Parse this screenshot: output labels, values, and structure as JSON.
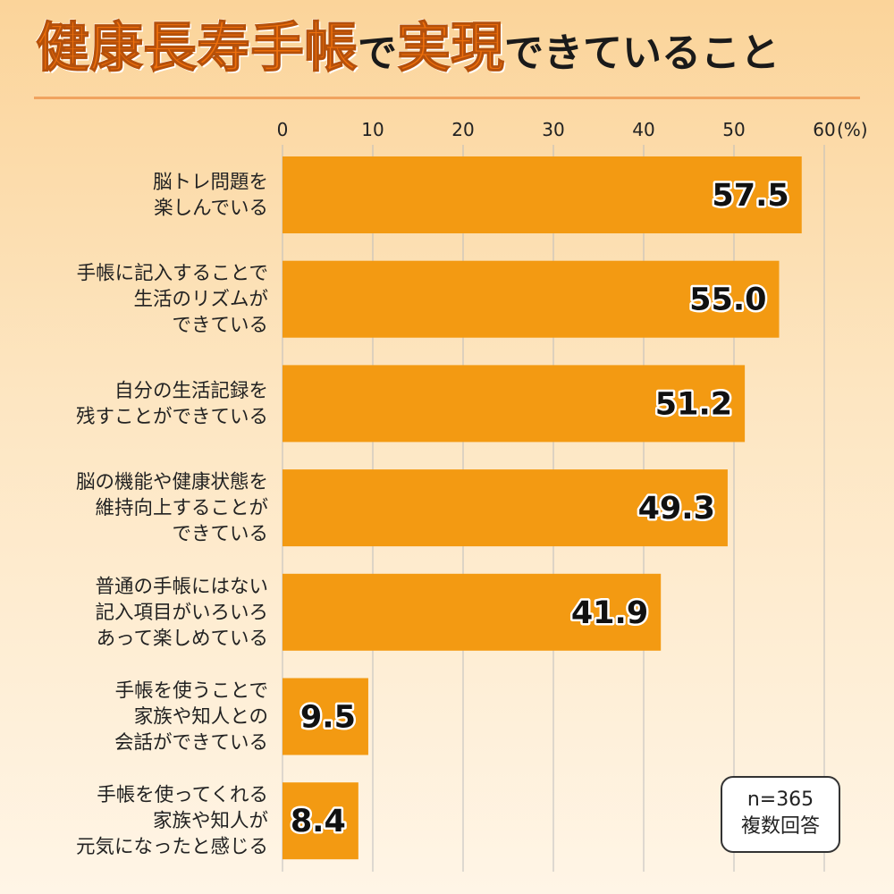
{
  "title": {
    "part1": "健康長寿手帳",
    "part2": "で",
    "part3": "実現",
    "part4": "できていること"
  },
  "colors": {
    "bar": "#f39a12",
    "title_accent": "#ee6f0c"
  },
  "note": {
    "line1": "n=365",
    "line2": "複数回答"
  },
  "chart_data": {
    "type": "bar",
    "orientation": "horizontal",
    "unit": "(%)",
    "xlim": [
      0,
      60
    ],
    "xticks": [
      0,
      10,
      20,
      30,
      40,
      50,
      60
    ],
    "grid": true,
    "categories": [
      [
        "脳トレ問題を",
        "楽しんでいる"
      ],
      [
        "手帳に記入することで",
        "生活のリズムが",
        "できている"
      ],
      [
        "自分の生活記録を",
        "残すことができている"
      ],
      [
        "脳の機能や健康状態を",
        "維持向上することが",
        "できている"
      ],
      [
        "普通の手帳にはない",
        "記入項目がいろいろ",
        "あって楽しめている"
      ],
      [
        "手帳を使うことで",
        "家族や知人との",
        "会話ができている"
      ],
      [
        "手帳を使ってくれる",
        "家族や知人が",
        "元気になったと感じる"
      ]
    ],
    "values": [
      57.5,
      55.0,
      51.2,
      49.3,
      41.9,
      9.5,
      8.4
    ],
    "value_labels": [
      "57.5",
      "55.0",
      "51.2",
      "49.3",
      "41.9",
      "9.5",
      "8.4"
    ]
  }
}
